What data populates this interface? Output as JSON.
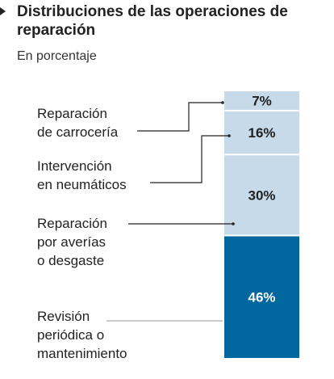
{
  "header": {
    "title": "Distribuciones de las operaciones de reparación",
    "subtitle": "En porcentaje"
  },
  "colors": {
    "light_segment": "#c6daea",
    "dark_segment": "#00679f",
    "light_label": "#222222",
    "dark_label": "#ffffff",
    "leader_line": "#222222"
  },
  "chart_data": {
    "type": "bar",
    "title": "Distribuciones de las operaciones de reparación",
    "subtitle": "En porcentaje",
    "stacked": true,
    "orientation": "vertical",
    "ylim": [
      0,
      100
    ],
    "unit": "%",
    "grid": false,
    "segments": [
      {
        "label_lines": [
          "Revisión",
          "periódica o",
          "mantenimiento"
        ],
        "value": 46,
        "value_label": "46%"
      },
      {
        "label_lines": [
          "Reparación",
          "por averías",
          "o desgaste"
        ],
        "value": 30,
        "value_label": "30%"
      },
      {
        "label_lines": [
          "Intervención",
          "en neumáticos"
        ],
        "value": 16,
        "value_label": "16%"
      },
      {
        "label_lines": [
          "Reparación",
          "de carrocería"
        ],
        "value": 7,
        "value_label": "7%"
      }
    ]
  }
}
